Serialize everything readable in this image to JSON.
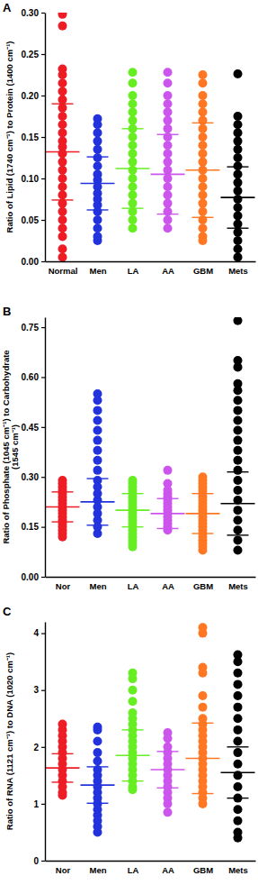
{
  "chart_data": [
    {
      "type": "strip",
      "title": "A",
      "y_label": [
        "Ratio of Lipid (1740 cm⁻¹) to Protein (1400 cm⁻¹)"
      ],
      "categories": [
        "Normal",
        "Men",
        "LA",
        "AA",
        "GBM",
        "Mets"
      ],
      "colors": [
        "#ee1c25",
        "#2233dd",
        "#66ee22",
        "#cc55ee",
        "#ff7722",
        "#000000"
      ],
      "values": [
        [
          0.298,
          0.284,
          0.232,
          0.225,
          0.215,
          0.205,
          0.195,
          0.185,
          0.175,
          0.165,
          0.155,
          0.145,
          0.138,
          0.13,
          0.12,
          0.11,
          0.1,
          0.09,
          0.08,
          0.07,
          0.06,
          0.05,
          0.04,
          0.03,
          0.015,
          0.005
        ],
        [
          0.172,
          0.165,
          0.155,
          0.145,
          0.135,
          0.125,
          0.115,
          0.105,
          0.098,
          0.09,
          0.082,
          0.075,
          0.068,
          0.06,
          0.05,
          0.04,
          0.03,
          0.025
        ],
        [
          0.228,
          0.215,
          0.2,
          0.19,
          0.18,
          0.17,
          0.16,
          0.15,
          0.14,
          0.13,
          0.12,
          0.11,
          0.1,
          0.09,
          0.08,
          0.07,
          0.06,
          0.05,
          0.04
        ],
        [
          0.228,
          0.215,
          0.2,
          0.19,
          0.18,
          0.17,
          0.16,
          0.15,
          0.14,
          0.13,
          0.12,
          0.11,
          0.1,
          0.09,
          0.08,
          0.07,
          0.06,
          0.05,
          0.04
        ],
        [
          0.225,
          0.215,
          0.2,
          0.19,
          0.18,
          0.17,
          0.16,
          0.15,
          0.14,
          0.13,
          0.12,
          0.11,
          0.1,
          0.09,
          0.08,
          0.07,
          0.06,
          0.05,
          0.04,
          0.03,
          0.025
        ],
        [
          0.226,
          0.175,
          0.165,
          0.155,
          0.145,
          0.135,
          0.125,
          0.115,
          0.105,
          0.095,
          0.085,
          0.075,
          0.065,
          0.055,
          0.045,
          0.035,
          0.025,
          0.015,
          0.005
        ]
      ],
      "mean": [
        0.132,
        0.094,
        0.112,
        0.105,
        0.11,
        0.077
      ],
      "sd": [
        0.058,
        0.032,
        0.048,
        0.048,
        0.057,
        0.037
      ],
      "ylim": [
        0,
        0.3
      ],
      "yticks": [
        {
          "value": 0,
          "label": "0.00"
        },
        {
          "value": 0.05,
          "label": "0.05"
        },
        {
          "value": 0.1,
          "label": "0.10"
        },
        {
          "value": 0.15,
          "label": "0.15"
        },
        {
          "value": 0.2,
          "label": "0.20"
        },
        {
          "value": 0.25,
          "label": "0.25"
        },
        {
          "value": 0.3,
          "label": "0.30"
        }
      ],
      "marker": "circle"
    },
    {
      "type": "strip",
      "title": "B",
      "y_label": [
        "Ratio of Phosphate  (1045 cm⁻¹) to Carbohydrate",
        "(1545 cm⁻¹)"
      ],
      "categories": [
        "Nor",
        "Men",
        "LA",
        "AA",
        "GBM",
        "Mets"
      ],
      "colors": [
        "#ee1c25",
        "#2233dd",
        "#66ee22",
        "#cc55ee",
        "#ff7722",
        "#000000"
      ],
      "values": [
        [
          0.29,
          0.28,
          0.27,
          0.26,
          0.25,
          0.24,
          0.23,
          0.22,
          0.21,
          0.2,
          0.19,
          0.18,
          0.17,
          0.16,
          0.15,
          0.14,
          0.13,
          0.12
        ],
        [
          0.55,
          0.53,
          0.5,
          0.47,
          0.44,
          0.41,
          0.38,
          0.35,
          0.32,
          0.29,
          0.27,
          0.25,
          0.23,
          0.21,
          0.19,
          0.17,
          0.15,
          0.13
        ],
        [
          0.29,
          0.28,
          0.27,
          0.26,
          0.25,
          0.24,
          0.23,
          0.22,
          0.21,
          0.2,
          0.19,
          0.18,
          0.17,
          0.16,
          0.15,
          0.14,
          0.13,
          0.12,
          0.11,
          0.1,
          0.09
        ],
        [
          0.32,
          0.28,
          0.26,
          0.25,
          0.24,
          0.23,
          0.22,
          0.21,
          0.2,
          0.19,
          0.18,
          0.17,
          0.16,
          0.15,
          0.14
        ],
        [
          0.3,
          0.29,
          0.28,
          0.27,
          0.26,
          0.25,
          0.24,
          0.23,
          0.22,
          0.21,
          0.2,
          0.19,
          0.18,
          0.17,
          0.16,
          0.15,
          0.14,
          0.13,
          0.12,
          0.11,
          0.1,
          0.09,
          0.08
        ],
        [
          0.77,
          0.65,
          0.63,
          0.58,
          0.56,
          0.53,
          0.5,
          0.47,
          0.44,
          0.41,
          0.38,
          0.35,
          0.32,
          0.29,
          0.26,
          0.23,
          0.2,
          0.17,
          0.14,
          0.11,
          0.08
        ]
      ],
      "mean": [
        0.21,
        0.225,
        0.2,
        0.19,
        0.19,
        0.22
      ],
      "sd": [
        0.045,
        0.07,
        0.05,
        0.045,
        0.06,
        0.095
      ],
      "ylim": [
        0,
        0.78
      ],
      "yticks": [
        {
          "value": 0,
          "label": "0.00"
        },
        {
          "value": 0.15,
          "label": "0.15"
        },
        {
          "value": 0.3,
          "label": "0.30"
        },
        {
          "value": 0.45,
          "label": "0.45"
        },
        {
          "value": 0.6,
          "label": "0.60"
        },
        {
          "value": 0.75,
          "label": "0.75"
        }
      ],
      "marker": "circle"
    },
    {
      "type": "strip",
      "title": "C",
      "y_label": [
        "Ratio of RNA (1121 cm⁻¹) to DNA (1020 cm⁻¹)"
      ],
      "categories": [
        "Nor",
        "Men",
        "LA",
        "AA",
        "GBM",
        "Mets"
      ],
      "colors": [
        "#ee1c25",
        "#2233dd",
        "#66ee22",
        "#cc55ee",
        "#ff7722",
        "#000000"
      ],
      "values": [
        [
          2.4,
          2.3,
          2.2,
          2.1,
          2.0,
          1.9,
          1.8,
          1.7,
          1.6,
          1.5,
          1.4,
          1.3,
          1.2,
          1.15
        ],
        [
          2.35,
          2.3,
          2.1,
          1.9,
          1.75,
          1.6,
          1.5,
          1.4,
          1.3,
          1.2,
          1.1,
          1.0,
          0.9,
          0.8,
          0.7,
          0.6,
          0.5
        ],
        [
          3.3,
          3.2,
          3.0,
          2.8,
          2.6,
          2.5,
          2.4,
          2.3,
          2.2,
          2.1,
          2.0,
          1.9,
          1.8,
          1.7,
          1.6,
          1.5,
          1.4,
          1.3,
          1.25
        ],
        [
          2.25,
          2.15,
          2.0,
          1.9,
          1.8,
          1.7,
          1.6,
          1.5,
          1.4,
          1.3,
          1.2,
          1.1,
          1.0,
          0.85
        ],
        [
          4.1,
          4.0,
          3.4,
          3.3,
          2.9,
          2.7,
          2.5,
          2.4,
          2.3,
          2.2,
          2.1,
          2.0,
          1.9,
          1.8,
          1.7,
          1.6,
          1.5,
          1.4,
          1.3,
          1.2,
          1.1,
          1.0
        ],
        [
          3.62,
          3.5,
          3.3,
          3.1,
          2.9,
          2.7,
          2.5,
          2.3,
          2.1,
          1.9,
          1.7,
          1.5,
          1.3,
          1.1,
          0.9,
          0.7,
          0.5,
          0.4
        ]
      ],
      "mean": [
        1.63,
        1.33,
        1.85,
        1.6,
        1.8,
        1.55
      ],
      "sd": [
        0.25,
        0.32,
        0.45,
        0.32,
        0.62,
        0.45
      ],
      "ylim": [
        0,
        4.2
      ],
      "yticks": [
        0,
        1,
        2,
        3,
        4
      ],
      "marker": "circle"
    }
  ]
}
